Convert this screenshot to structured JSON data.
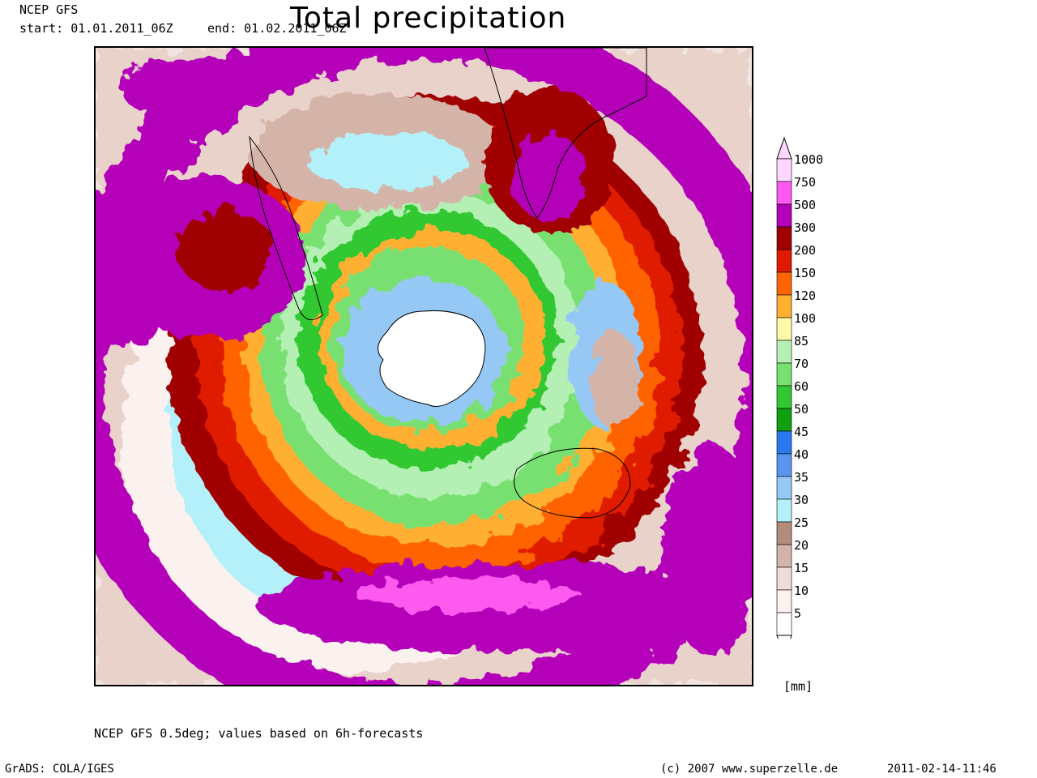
{
  "header": {
    "model": "NCEP GFS",
    "start": "start: 01.01.2011_06Z",
    "end": "end: 01.02.2011_06Z"
  },
  "title": "Total precipitation",
  "legend": {
    "unit": "[mm]",
    "levels": [
      {
        "label": "1000",
        "color": "#ffd6ff"
      },
      {
        "label": "750",
        "color": "#ff5af0"
      },
      {
        "label": "500",
        "color": "#b400b8"
      },
      {
        "label": "300",
        "color": "#a00000"
      },
      {
        "label": "200",
        "color": "#e01a00"
      },
      {
        "label": "150",
        "color": "#ff6400"
      },
      {
        "label": "120",
        "color": "#ffb030"
      },
      {
        "label": "100",
        "color": "#fff8a8"
      },
      {
        "label": "85",
        "color": "#b4f0b4"
      },
      {
        "label": "70",
        "color": "#78e070"
      },
      {
        "label": "60",
        "color": "#32c832"
      },
      {
        "label": "50",
        "color": "#10a010"
      },
      {
        "label": "45",
        "color": "#2a78f0"
      },
      {
        "label": "40",
        "color": "#5a96f0"
      },
      {
        "label": "35",
        "color": "#96c8f5"
      },
      {
        "label": "30",
        "color": "#b4f0fa"
      },
      {
        "label": "25",
        "color": "#b48c7c"
      },
      {
        "label": "20",
        "color": "#d4b4a8"
      },
      {
        "label": "15",
        "color": "#eedcd6"
      },
      {
        "label": "10",
        "color": "#fbf1ee"
      },
      {
        "label": "5",
        "color": "#ffffff"
      }
    ]
  },
  "footnote": "NCEP GFS 0.5deg; values based on 6h-forecasts",
  "footer": {
    "grads": "GrADS: COLA/IGES",
    "copyright": "(c) 2007 www.superzelle.de",
    "timestamp": "2011-02-14-11:46"
  }
}
